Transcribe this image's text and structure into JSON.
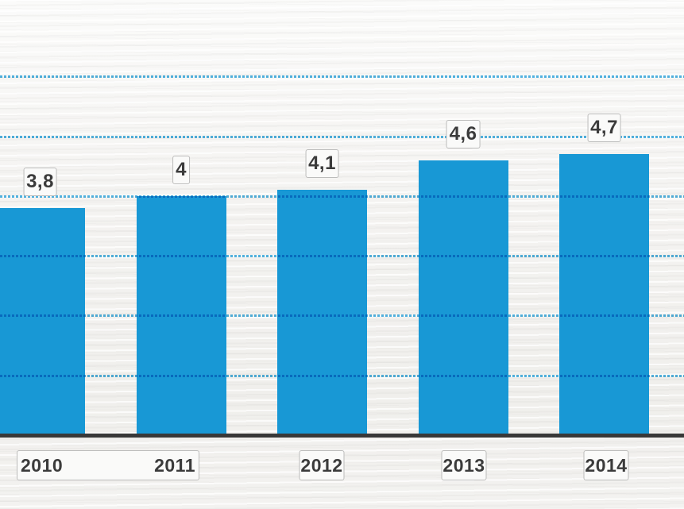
{
  "chart_data": {
    "type": "bar",
    "title": "",
    "xlabel": "",
    "ylabel": "",
    "categories": [
      "2010",
      "2011",
      "2012",
      "2013",
      "2014"
    ],
    "values": [
      3.8,
      4.0,
      4.1,
      4.6,
      4.7
    ],
    "value_labels": [
      "3,8",
      "4",
      "4,1",
      "4,6",
      "4,7"
    ],
    "decimal_separator": ",",
    "ylim": [
      0,
      7.3
    ],
    "gridline_values": [
      1,
      2,
      3,
      4,
      5,
      6
    ],
    "grid_style": "dotted-horizontal",
    "legend_position": "none",
    "colors": {
      "bar": "#1898d5",
      "gridline": "#52b4e3",
      "axis_line": "#383838",
      "label_text": "#3b3b3b",
      "label_box_background": "#fafaf9",
      "label_box_border": "#bcbcbb",
      "page_background": "#f2f1ef"
    }
  }
}
